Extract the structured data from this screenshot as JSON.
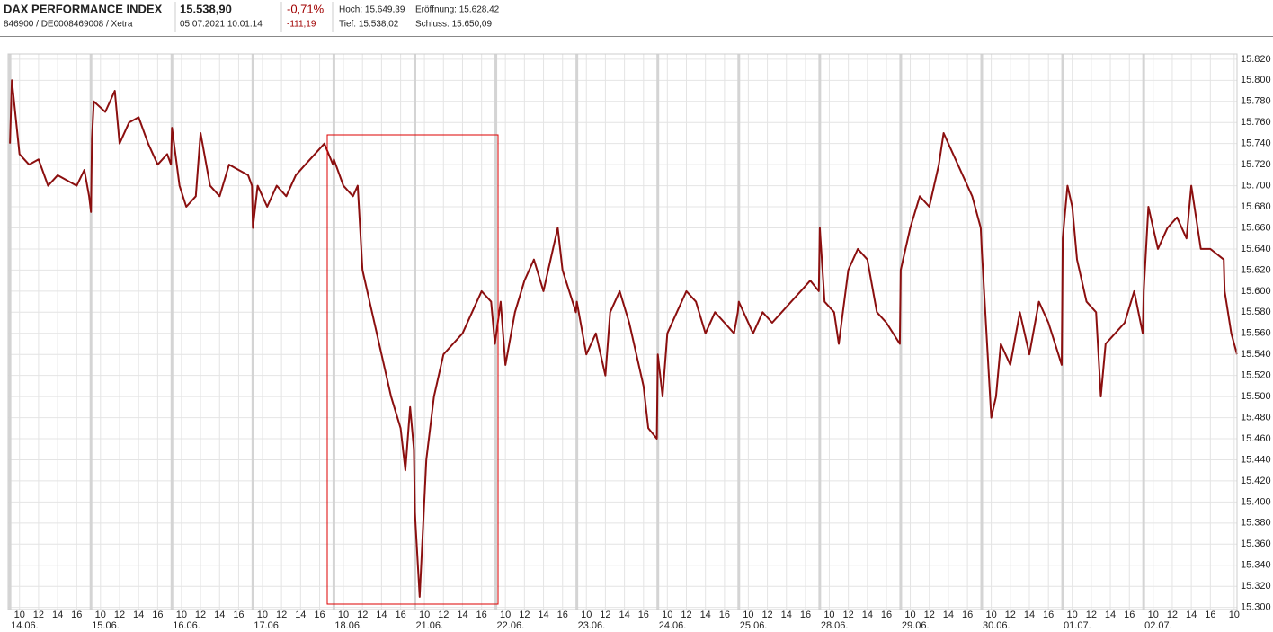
{
  "header": {
    "name": "DAX PERFORMANCE INDEX",
    "id": "846900 / DE0008469008 / Xetra",
    "price": "15.538,90",
    "time": "05.07.2021 10:01:14",
    "change_pct": "-0,71%",
    "change_abs": "-111,19",
    "high": "Hoch: 15.649,39",
    "low": "Tief: 15.538,02",
    "open": "Eröffnung: 15.628,42",
    "close": "Schluss: 15.650,09"
  },
  "chart_data": {
    "type": "line",
    "color": "#8b0f0f",
    "grid": true,
    "x": [
      0,
      0.2,
      1,
      2,
      3,
      4,
      5,
      6,
      7,
      7.8,
      8.3,
      8.5,
      8.6,
      8.8,
      10,
      11,
      11.5,
      12.5,
      13.5,
      14.5,
      15.5,
      16.5,
      16.9,
      17,
      17.8,
      18.5,
      19.5,
      20,
      21,
      22,
      23,
      24,
      25,
      25.4,
      25.5,
      26,
      27,
      28,
      29,
      30,
      31,
      32,
      33,
      33.9,
      34,
      35,
      36,
      36.5,
      37,
      38,
      39,
      40,
      41,
      41.5,
      42,
      42.4,
      42.5,
      43,
      43.7,
      44.5,
      45.5,
      46.5,
      47.5,
      48.5,
      49.5,
      50.5,
      50.9,
      51.5,
      52,
      53,
      54,
      55,
      56,
      57,
      57.5,
      58,
      59.4,
      59.5,
      60.5,
      61.5,
      62.5,
      63,
      64,
      65,
      66.5,
      67,
      67.9,
      68,
      68.5,
      69,
      70,
      71,
      72,
      73,
      74,
      75,
      76,
      76.4,
      76.5,
      78,
      79,
      80,
      81,
      82,
      83,
      84,
      84.9,
      85,
      85.5,
      86.5,
      87,
      88,
      89,
      90,
      91,
      92,
      93.4,
      93.5,
      94.5,
      95.5,
      96.5,
      97.5,
      98,
      99,
      100,
      101,
      101.9,
      102,
      102.5,
      103,
      103.5,
      104,
      105,
      106,
      107,
      108,
      109,
      110.4,
      110.5,
      111,
      111.5,
      112,
      113,
      114,
      114.5,
      115,
      116,
      117,
      118,
      118.9,
      119,
      119.5,
      120.5,
      121.5,
      122.5,
      123.5,
      124,
      125,
      126,
      127.4,
      127.5,
      128.2,
      128.8
    ],
    "values": [
      15740,
      15800,
      15730,
      15720,
      15725,
      15700,
      15710,
      15705,
      15700,
      15715,
      15690,
      15675,
      15745,
      15780,
      15770,
      15790,
      15740,
      15760,
      15765,
      15740,
      15720,
      15730,
      15720,
      15755,
      15700,
      15680,
      15690,
      15750,
      15700,
      15690,
      15720,
      15715,
      15710,
      15700,
      15660,
      15700,
      15680,
      15700,
      15690,
      15710,
      15720,
      15730,
      15740,
      15720,
      15725,
      15700,
      15690,
      15700,
      15620,
      15580,
      15540,
      15500,
      15470,
      15430,
      15490,
      15450,
      15390,
      15310,
      15440,
      15500,
      15540,
      15550,
      15560,
      15580,
      15600,
      15590,
      15550,
      15590,
      15530,
      15580,
      15610,
      15630,
      15600,
      15640,
      15660,
      15620,
      15580,
      15590,
      15540,
      15560,
      15520,
      15580,
      15600,
      15570,
      15510,
      15470,
      15460,
      15540,
      15500,
      15560,
      15580,
      15600,
      15590,
      15560,
      15580,
      15570,
      15560,
      15580,
      15590,
      15560,
      15580,
      15570,
      15580,
      15590,
      15600,
      15610,
      15600,
      15660,
      15590,
      15580,
      15550,
      15620,
      15640,
      15630,
      15580,
      15570,
      15550,
      15620,
      15660,
      15690,
      15680,
      15720,
      15750,
      15730,
      15710,
      15690,
      15660,
      15640,
      15560,
      15480,
      15500,
      15550,
      15530,
      15580,
      15540,
      15590,
      15570,
      15530,
      15650,
      15700,
      15680,
      15630,
      15590,
      15580,
      15500,
      15550,
      15560,
      15570,
      15600,
      15560,
      15600,
      15680,
      15640,
      15660,
      15670,
      15650,
      15700,
      15640,
      15640,
      15630,
      15600,
      15560,
      15540
    ],
    "xlim": [
      -0.2,
      128.8
    ],
    "ylim": [
      15298,
      15825
    ],
    "yticks": [
      {
        "value": 15300,
        "label": "15.300"
      },
      {
        "value": 15320,
        "label": "15.320"
      },
      {
        "value": 15340,
        "label": "15.340"
      },
      {
        "value": 15360,
        "label": "15.360"
      },
      {
        "value": 15380,
        "label": "15.380"
      },
      {
        "value": 15400,
        "label": "15.400"
      },
      {
        "value": 15420,
        "label": "15.420"
      },
      {
        "value": 15440,
        "label": "15.440"
      },
      {
        "value": 15460,
        "label": "15.460"
      },
      {
        "value": 15480,
        "label": "15.480"
      },
      {
        "value": 15500,
        "label": "15.500"
      },
      {
        "value": 15520,
        "label": "15.520"
      },
      {
        "value": 15540,
        "label": "15.540"
      },
      {
        "value": 15560,
        "label": "15.560"
      },
      {
        "value": 15580,
        "label": "15.580"
      },
      {
        "value": 15600,
        "label": "15.600"
      },
      {
        "value": 15620,
        "label": "15.620"
      },
      {
        "value": 15640,
        "label": "15.640"
      },
      {
        "value": 15660,
        "label": "15.660"
      },
      {
        "value": 15680,
        "label": "15.680"
      },
      {
        "value": 15700,
        "label": "15.700"
      },
      {
        "value": 15720,
        "label": "15.720"
      },
      {
        "value": 15740,
        "label": "15.740"
      },
      {
        "value": 15760,
        "label": "15.760"
      },
      {
        "value": 15780,
        "label": "15.780"
      },
      {
        "value": 15800,
        "label": "15.800"
      },
      {
        "value": 15820,
        "label": "15.820"
      }
    ],
    "xticks": [
      {
        "value": 1,
        "label": "10"
      },
      {
        "value": 3,
        "label": "12"
      },
      {
        "value": 5,
        "label": "14"
      },
      {
        "value": 7,
        "label": "16"
      },
      {
        "value": 9.5,
        "label": "10"
      },
      {
        "value": 11.5,
        "label": "12"
      },
      {
        "value": 13.5,
        "label": "14"
      },
      {
        "value": 15.5,
        "label": "16"
      },
      {
        "value": 18,
        "label": "10"
      },
      {
        "value": 20,
        "label": "12"
      },
      {
        "value": 22,
        "label": "14"
      },
      {
        "value": 24,
        "label": "16"
      },
      {
        "value": 26.5,
        "label": "10"
      },
      {
        "value": 28.5,
        "label": "12"
      },
      {
        "value": 30.5,
        "label": "14"
      },
      {
        "value": 32.5,
        "label": "16"
      },
      {
        "value": 35,
        "label": "10"
      },
      {
        "value": 37,
        "label": "12"
      },
      {
        "value": 39,
        "label": "14"
      },
      {
        "value": 41,
        "label": "16"
      },
      {
        "value": 43.5,
        "label": "10"
      },
      {
        "value": 45.5,
        "label": "12"
      },
      {
        "value": 47.5,
        "label": "14"
      },
      {
        "value": 49.5,
        "label": "16"
      },
      {
        "value": 52,
        "label": "10"
      },
      {
        "value": 54,
        "label": "12"
      },
      {
        "value": 56,
        "label": "14"
      },
      {
        "value": 58,
        "label": "16"
      },
      {
        "value": 60.5,
        "label": "10"
      },
      {
        "value": 62.5,
        "label": "12"
      },
      {
        "value": 64.5,
        "label": "14"
      },
      {
        "value": 66.5,
        "label": "16"
      },
      {
        "value": 69,
        "label": "10"
      },
      {
        "value": 71,
        "label": "12"
      },
      {
        "value": 73,
        "label": "14"
      },
      {
        "value": 75,
        "label": "16"
      },
      {
        "value": 77.5,
        "label": "10"
      },
      {
        "value": 79.5,
        "label": "12"
      },
      {
        "value": 81.5,
        "label": "14"
      },
      {
        "value": 83.5,
        "label": "16"
      },
      {
        "value": 86,
        "label": "10"
      },
      {
        "value": 88,
        "label": "12"
      },
      {
        "value": 90,
        "label": "14"
      },
      {
        "value": 92,
        "label": "16"
      },
      {
        "value": 94.5,
        "label": "10"
      },
      {
        "value": 96.5,
        "label": "12"
      },
      {
        "value": 98.5,
        "label": "14"
      },
      {
        "value": 100.5,
        "label": "16"
      },
      {
        "value": 103,
        "label": "10"
      },
      {
        "value": 105,
        "label": "12"
      },
      {
        "value": 107,
        "label": "14"
      },
      {
        "value": 109,
        "label": "16"
      },
      {
        "value": 111.5,
        "label": "10"
      },
      {
        "value": 113.5,
        "label": "12"
      },
      {
        "value": 115.5,
        "label": "14"
      },
      {
        "value": 117.5,
        "label": "16"
      },
      {
        "value": 120,
        "label": "10"
      },
      {
        "value": 122,
        "label": "12"
      },
      {
        "value": 124,
        "label": "14"
      },
      {
        "value": 126,
        "label": "16"
      },
      {
        "value": 128.5,
        "label": "10"
      }
    ],
    "day_ticks": [
      {
        "value": 0,
        "label": "14.06."
      },
      {
        "value": 8.5,
        "label": "15.06."
      },
      {
        "value": 17,
        "label": "16.06."
      },
      {
        "value": 25.5,
        "label": "17.06."
      },
      {
        "value": 34,
        "label": "18.06."
      },
      {
        "value": 42.5,
        "label": "21.06."
      },
      {
        "value": 51,
        "label": "22.06."
      },
      {
        "value": 59.5,
        "label": "23.06."
      },
      {
        "value": 68,
        "label": "24.06."
      },
      {
        "value": 76.5,
        "label": "25.06."
      },
      {
        "value": 85,
        "label": "28.06."
      },
      {
        "value": 93.5,
        "label": "29.06."
      },
      {
        "value": 102,
        "label": "30.06."
      },
      {
        "value": 110.5,
        "label": "01.07."
      },
      {
        "value": 119,
        "label": "02.07."
      }
    ]
  }
}
